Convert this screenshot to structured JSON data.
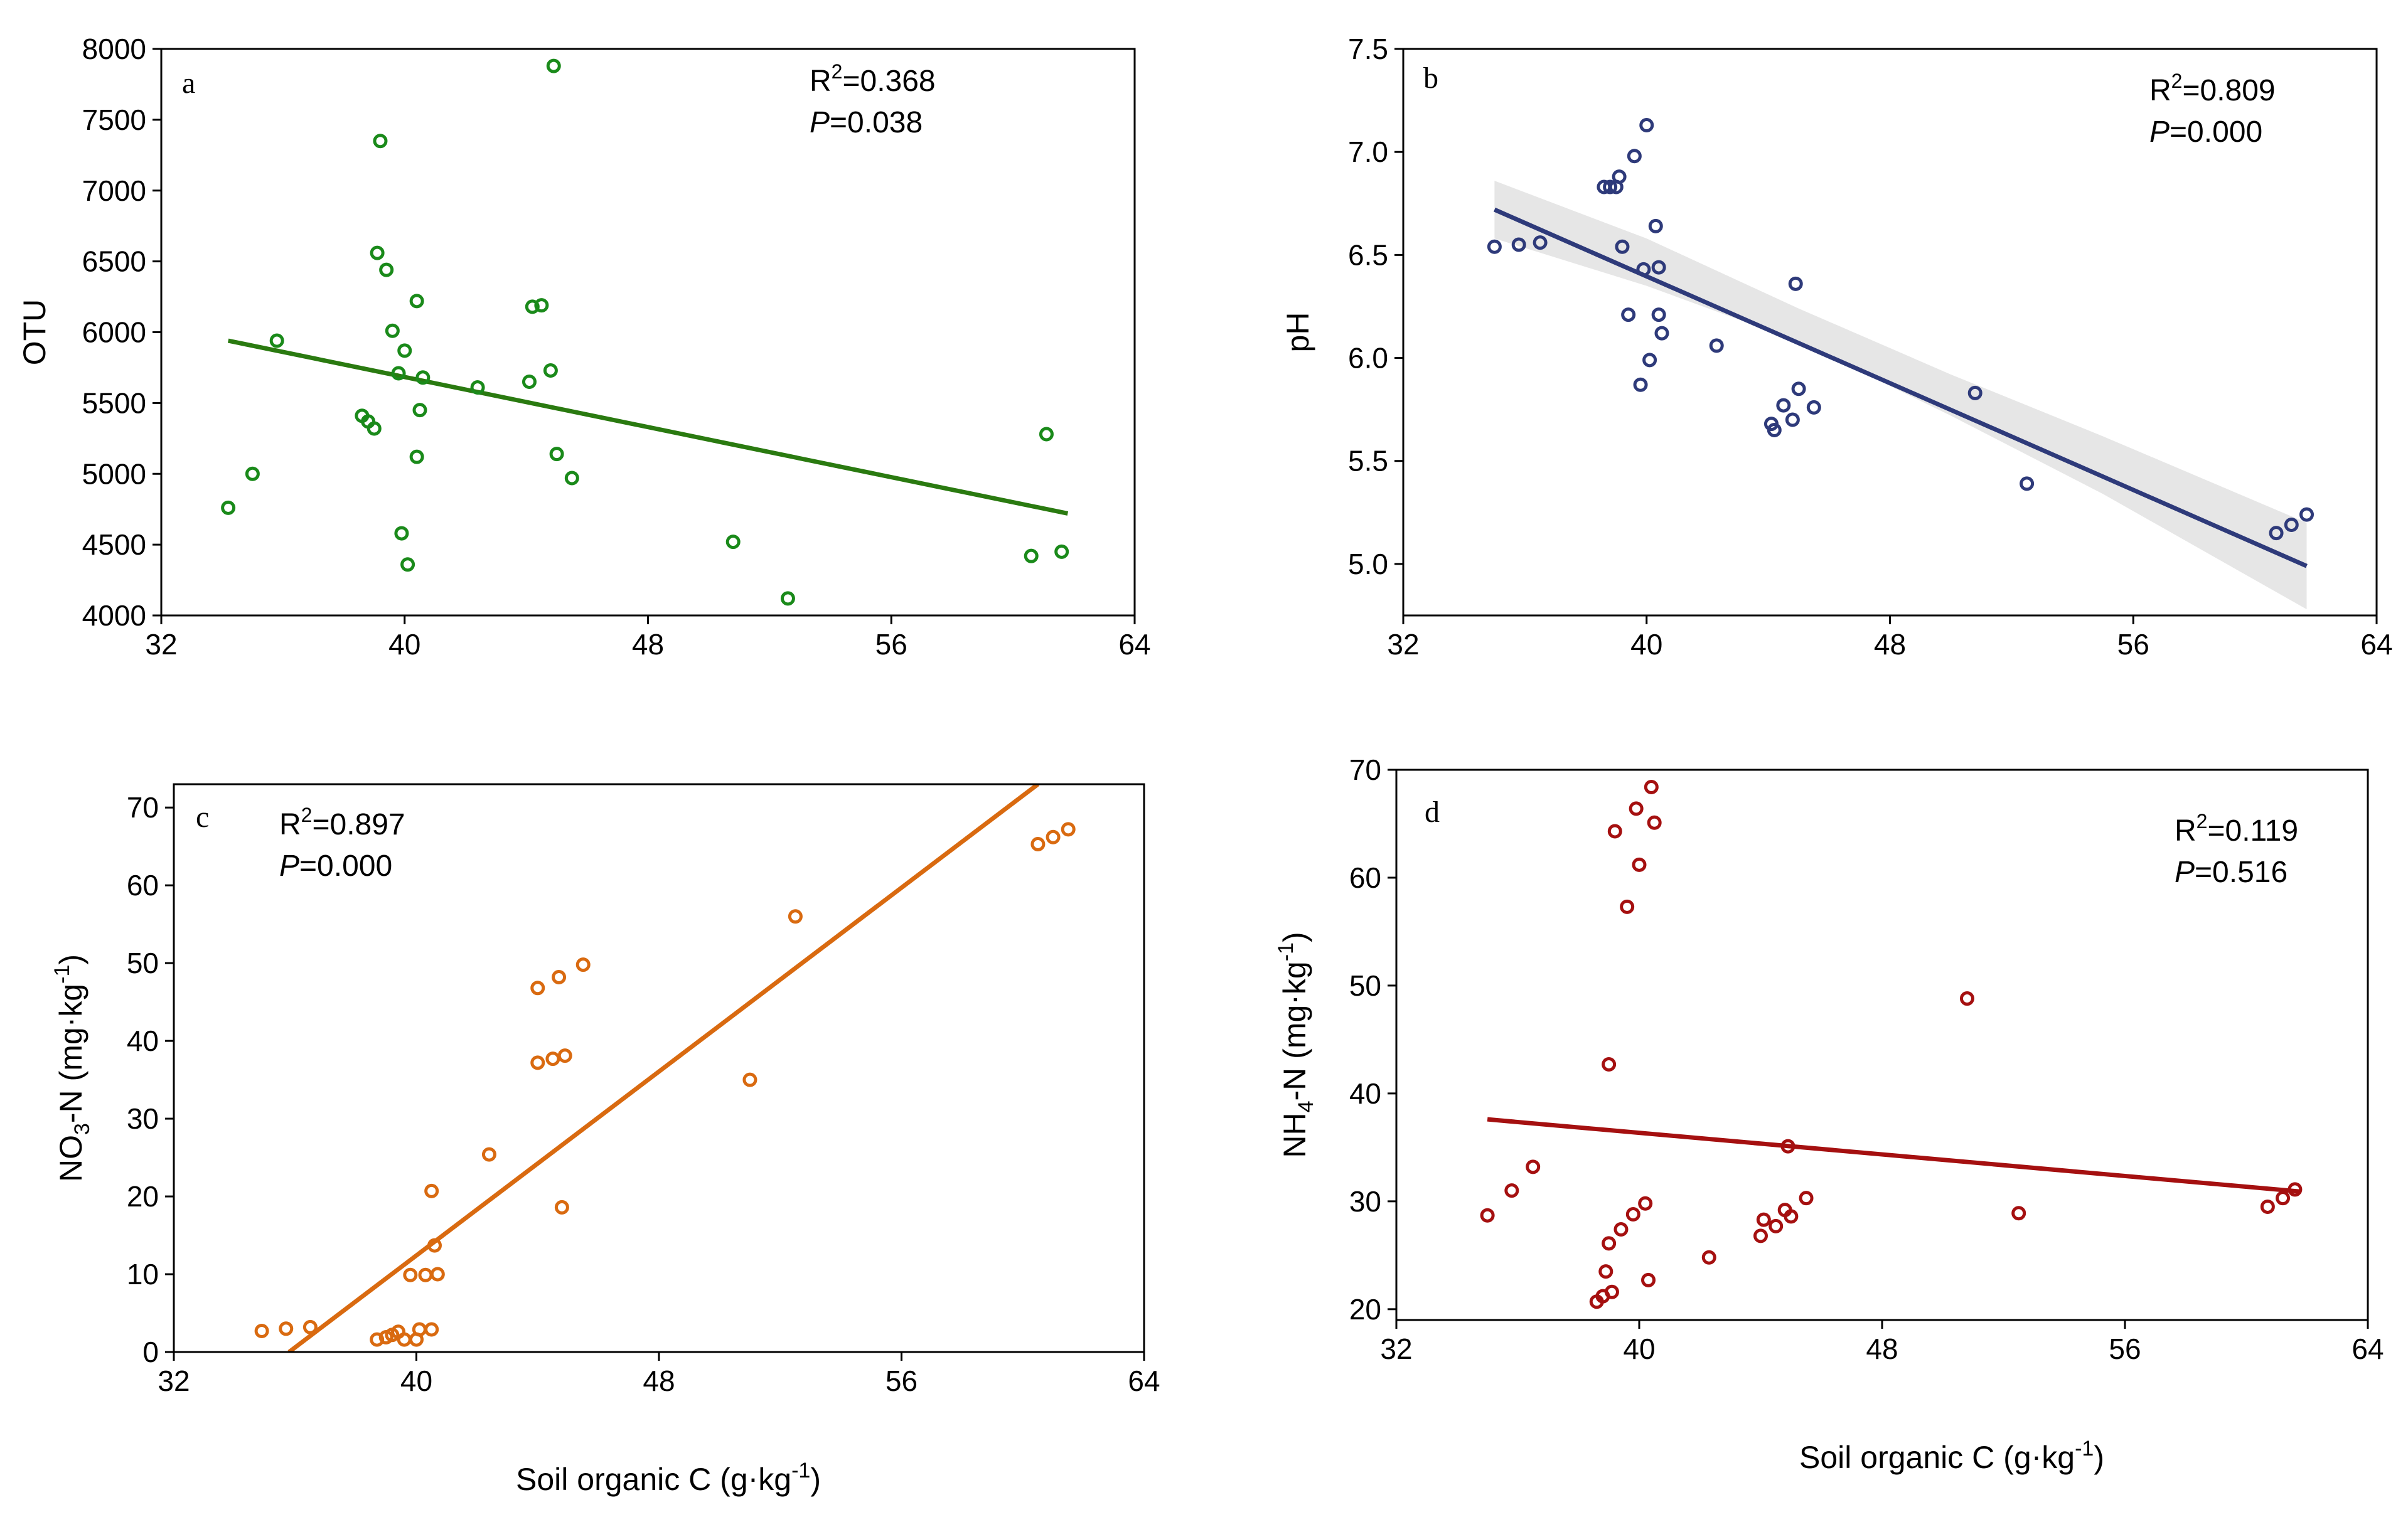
{
  "figure": {
    "xlabel": {
      "base": "Soil organic C (g",
      "dot": "·",
      "unit": "kg",
      "exp": "-1",
      "close": ")"
    }
  },
  "chart_data": [
    {
      "type": "scatter",
      "panel": "a",
      "color": "#2a7a10",
      "dot_color": "#1a8a1a",
      "ylabel": "OTU",
      "xlim": [
        32,
        64
      ],
      "ylim": [
        4000,
        8000
      ],
      "xticks": [
        32,
        40,
        48,
        56,
        64
      ],
      "yticks": [
        4000,
        4500,
        5000,
        5500,
        6000,
        6500,
        7000,
        7500,
        8000
      ],
      "stats": {
        "r2_label": "R",
        "r2_exp": "2",
        "r2_value": "=0.368",
        "p_label": "P",
        "p_value": "=0.038"
      },
      "points": [
        [
          34.2,
          4760
        ],
        [
          35,
          5000
        ],
        [
          35.8,
          5940
        ],
        [
          38.6,
          5410
        ],
        [
          38.8,
          5370
        ],
        [
          39,
          5320
        ],
        [
          39.1,
          6560
        ],
        [
          39.2,
          7350
        ],
        [
          39.4,
          6440
        ],
        [
          39.6,
          6010
        ],
        [
          39.8,
          5710
        ],
        [
          39.9,
          4580
        ],
        [
          40.0,
          5870
        ],
        [
          40.1,
          4360
        ],
        [
          40.4,
          6220
        ],
        [
          40.4,
          5120
        ],
        [
          40.5,
          5450
        ],
        [
          40.6,
          5680
        ],
        [
          42.4,
          5610
        ],
        [
          44.1,
          5650
        ],
        [
          44.2,
          6180
        ],
        [
          44.5,
          6190
        ],
        [
          44.8,
          5730
        ],
        [
          44.9,
          7880
        ],
        [
          45.0,
          5140
        ],
        [
          45.5,
          4970
        ],
        [
          50.8,
          4520
        ],
        [
          52.6,
          4120
        ],
        [
          60.6,
          4420
        ],
        [
          61.1,
          5280
        ],
        [
          61.6,
          4450
        ]
      ],
      "fit": [
        [
          34.2,
          5940
        ],
        [
          61.8,
          4720
        ]
      ]
    },
    {
      "type": "scatter",
      "panel": "b",
      "color": "#2e3a7a",
      "dot_color": "#2e3a7a",
      "band_color": "#c8c8c8",
      "ylabel": "pH",
      "xlim": [
        32,
        64
      ],
      "ylim": [
        4.75,
        7.5
      ],
      "xticks": [
        32,
        40,
        48,
        56,
        64
      ],
      "yticks": [
        5.0,
        5.5,
        6.0,
        6.5,
        7.0,
        7.5
      ],
      "ytick_labels": [
        "5.0",
        "5.5",
        "6.0",
        "6.5",
        "7.0",
        "7.5"
      ],
      "stats": {
        "r2_label": "R",
        "r2_exp": "2",
        "r2_value": "=0.809",
        "p_label": "P",
        "p_value": "=0.000"
      },
      "points": [
        [
          35,
          6.54
        ],
        [
          35.8,
          6.55
        ],
        [
          36.5,
          6.56
        ],
        [
          38.6,
          6.83
        ],
        [
          38.8,
          6.83
        ],
        [
          39.0,
          6.83
        ],
        [
          39.1,
          6.88
        ],
        [
          39.2,
          6.54
        ],
        [
          39.4,
          6.21
        ],
        [
          39.6,
          6.98
        ],
        [
          39.8,
          5.87
        ],
        [
          39.9,
          6.43
        ],
        [
          40.0,
          7.13
        ],
        [
          40.1,
          5.99
        ],
        [
          40.3,
          6.64
        ],
        [
          40.4,
          6.21
        ],
        [
          40.5,
          6.12
        ],
        [
          40.4,
          6.44
        ],
        [
          42.3,
          6.06
        ],
        [
          44.1,
          5.68
        ],
        [
          44.2,
          5.65
        ],
        [
          44.5,
          5.77
        ],
        [
          44.8,
          5.7
        ],
        [
          44.9,
          6.36
        ],
        [
          45.0,
          5.85
        ],
        [
          45.5,
          5.76
        ],
        [
          50.8,
          5.83
        ],
        [
          52.5,
          5.39
        ],
        [
          60.7,
          5.15
        ],
        [
          61.2,
          5.19
        ],
        [
          61.7,
          5.24
        ]
      ],
      "fit": [
        [
          35,
          6.72
        ],
        [
          61.7,
          4.99
        ]
      ],
      "band": [
        [
          35,
          6.86,
          6.58
        ],
        [
          40,
          6.58,
          6.35
        ],
        [
          45,
          6.24,
          6.08
        ],
        [
          50,
          5.92,
          5.72
        ],
        [
          55,
          5.62,
          5.34
        ],
        [
          61.7,
          5.2,
          4.78
        ]
      ]
    },
    {
      "type": "scatter",
      "panel": "c",
      "color": "#d96a10",
      "dot_color": "#d96a10",
      "ylabel_base": "NO",
      "ylabel_sub": "3",
      "ylabel_mid": "-N (mg",
      "ylabel_dot": "·",
      "ylabel_unit": "kg",
      "ylabel_exp": "-1",
      "ylabel_close": ")",
      "xlim": [
        32,
        64
      ],
      "ylim": [
        0,
        73
      ],
      "xticks": [
        32,
        40,
        48,
        56,
        64
      ],
      "yticks": [
        0,
        10,
        20,
        30,
        40,
        50,
        60,
        70
      ],
      "stats": {
        "r2_label": "R",
        "r2_exp": "2",
        "r2_value": "=0.897",
        "p_label": "P",
        "p_value": "=0.000"
      },
      "points": [
        [
          34.9,
          2.7
        ],
        [
          35.7,
          3.0
        ],
        [
          36.5,
          3.2
        ],
        [
          38.7,
          1.6
        ],
        [
          39.0,
          1.9
        ],
        [
          39.2,
          2.2
        ],
        [
          39.4,
          2.6
        ],
        [
          39.6,
          1.6
        ],
        [
          39.8,
          9.9
        ],
        [
          40.0,
          1.6
        ],
        [
          40.1,
          2.9
        ],
        [
          40.3,
          9.9
        ],
        [
          40.5,
          20.7
        ],
        [
          40.6,
          13.7
        ],
        [
          40.7,
          10.0
        ],
        [
          40.5,
          2.9
        ],
        [
          42.4,
          25.4
        ],
        [
          44.0,
          46.8
        ],
        [
          44.0,
          37.2
        ],
        [
          44.5,
          37.7
        ],
        [
          44.7,
          48.2
        ],
        [
          44.8,
          18.6
        ],
        [
          44.9,
          38.1
        ],
        [
          45.5,
          49.8
        ],
        [
          51.0,
          35.0
        ],
        [
          52.5,
          56.0
        ],
        [
          60.5,
          65.3
        ],
        [
          61.0,
          66.2
        ],
        [
          61.5,
          67.2
        ]
      ],
      "fit": [
        [
          35.8,
          0
        ],
        [
          60.5,
          73
        ]
      ]
    },
    {
      "type": "scatter",
      "panel": "d",
      "color": "#a51010",
      "dot_color": "#a51010",
      "ylabel_base": "NH",
      "ylabel_sub": "4",
      "ylabel_mid": "-N (mg",
      "ylabel_dot": "·",
      "ylabel_unit": "kg",
      "ylabel_exp": "-1",
      "ylabel_close": ")",
      "xlim": [
        32,
        64
      ],
      "ylim": [
        19,
        70
      ],
      "xticks": [
        32,
        40,
        48,
        56,
        64
      ],
      "yticks": [
        20,
        30,
        40,
        50,
        60,
        70
      ],
      "stats": {
        "r2_label": "R",
        "r2_exp": "2",
        "r2_value": "=0.119",
        "p_label": "P",
        "p_value": "=0.516"
      },
      "points": [
        [
          35,
          28.7
        ],
        [
          35.8,
          31.0
        ],
        [
          36.5,
          33.2
        ],
        [
          38.6,
          20.7
        ],
        [
          38.8,
          21.2
        ],
        [
          38.9,
          23.5
        ],
        [
          39.0,
          26.1
        ],
        [
          39.1,
          21.6
        ],
        [
          39.0,
          42.7
        ],
        [
          39.2,
          64.3
        ],
        [
          39.4,
          27.4
        ],
        [
          39.6,
          57.3
        ],
        [
          39.8,
          28.8
        ],
        [
          39.9,
          66.4
        ],
        [
          40.0,
          61.2
        ],
        [
          40.2,
          29.8
        ],
        [
          40.3,
          22.7
        ],
        [
          40.4,
          68.4
        ],
        [
          40.5,
          65.1
        ],
        [
          42.3,
          24.8
        ],
        [
          44.0,
          26.8
        ],
        [
          44.1,
          28.3
        ],
        [
          44.5,
          27.7
        ],
        [
          44.8,
          29.2
        ],
        [
          44.9,
          35.1
        ],
        [
          45.0,
          28.6
        ],
        [
          45.5,
          30.3
        ],
        [
          50.8,
          48.8
        ],
        [
          52.5,
          28.9
        ],
        [
          60.7,
          29.5
        ],
        [
          61.2,
          30.3
        ],
        [
          61.6,
          31.1
        ]
      ],
      "fit": [
        [
          35,
          37.6
        ],
        [
          61.8,
          30.9
        ]
      ]
    }
  ]
}
